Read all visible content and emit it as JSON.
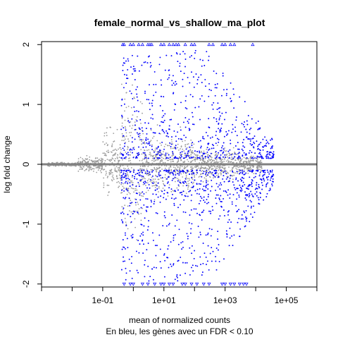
{
  "chart_data": {
    "type": "scatter",
    "title": "female_normal_vs_shallow_ma_plot",
    "xlabel": "mean of normalized counts",
    "ylabel": "log fold change",
    "subtitle": "En bleu, les gènes avec un FDR < 0.10",
    "x_scale": "log10",
    "xlim": [
      0.001,
      1000000
    ],
    "ylim": [
      -2.05,
      2.05
    ],
    "x_ticks": [
      0.001,
      0.01,
      0.1,
      1,
      10,
      100,
      1000,
      10000,
      100000,
      1000000
    ],
    "x_tick_labels": [
      "",
      "",
      "1e-01",
      "",
      "1e+01",
      "",
      "1e+03",
      "",
      "1e+05",
      ""
    ],
    "y_ticks": [
      -2,
      -1,
      0,
      1,
      2
    ],
    "y_tick_labels": [
      "-2",
      "-1",
      "0",
      "1",
      "2"
    ],
    "reference_line": {
      "y": 0,
      "color": "#808080"
    },
    "grid": false,
    "series": [
      {
        "color": "#9b9b9b",
        "marker": "point",
        "density": [
          {
            "x_log": [
              -2.8,
              -1.8
            ],
            "y_spread": 0.03
          },
          {
            "x_log": [
              -1.8,
              -1.0
            ],
            "y_spread": 0.12
          },
          {
            "x_log": [
              -1.0,
              -0.4
            ],
            "y_spread": 0.55
          },
          {
            "x_log": [
              -0.4,
              0.3
            ],
            "y_spread": 1.2
          },
          {
            "x_log": [
              0.3,
              2.0
            ],
            "y_spread": 0.5
          },
          {
            "x_log": [
              2.0,
              3.5
            ],
            "y_spread": 0.25
          },
          {
            "x_log": [
              3.5,
              4.2
            ],
            "y_spread": 0.15
          }
        ]
      },
      {
        "color": "#0000ff",
        "marker": "point",
        "x_log_range": [
          -0.4,
          4.6
        ],
        "y_up_range": [
          0.1,
          1.9
        ],
        "y_down_range": [
          -1.95,
          -0.1
        ]
      },
      {
        "color": "#0000ff",
        "marker": "triangle-up",
        "y": 2,
        "x": [
          0.45,
          0.5,
          0.8,
          1.0,
          1.5,
          2,
          3,
          3.5,
          4,
          8,
          10,
          15,
          20,
          25,
          30,
          50,
          80,
          100,
          300,
          400,
          800,
          1000,
          1500,
          2000,
          8000
        ]
      },
      {
        "color": "#0000ff",
        "marker": "triangle-down",
        "y": -2,
        "x": [
          0.5,
          0.8,
          1.0,
          2,
          3,
          5,
          8,
          10,
          15,
          20,
          40,
          50,
          80,
          120,
          200,
          300,
          800,
          1000,
          1500,
          2000,
          3000,
          4000,
          5000
        ]
      }
    ]
  }
}
